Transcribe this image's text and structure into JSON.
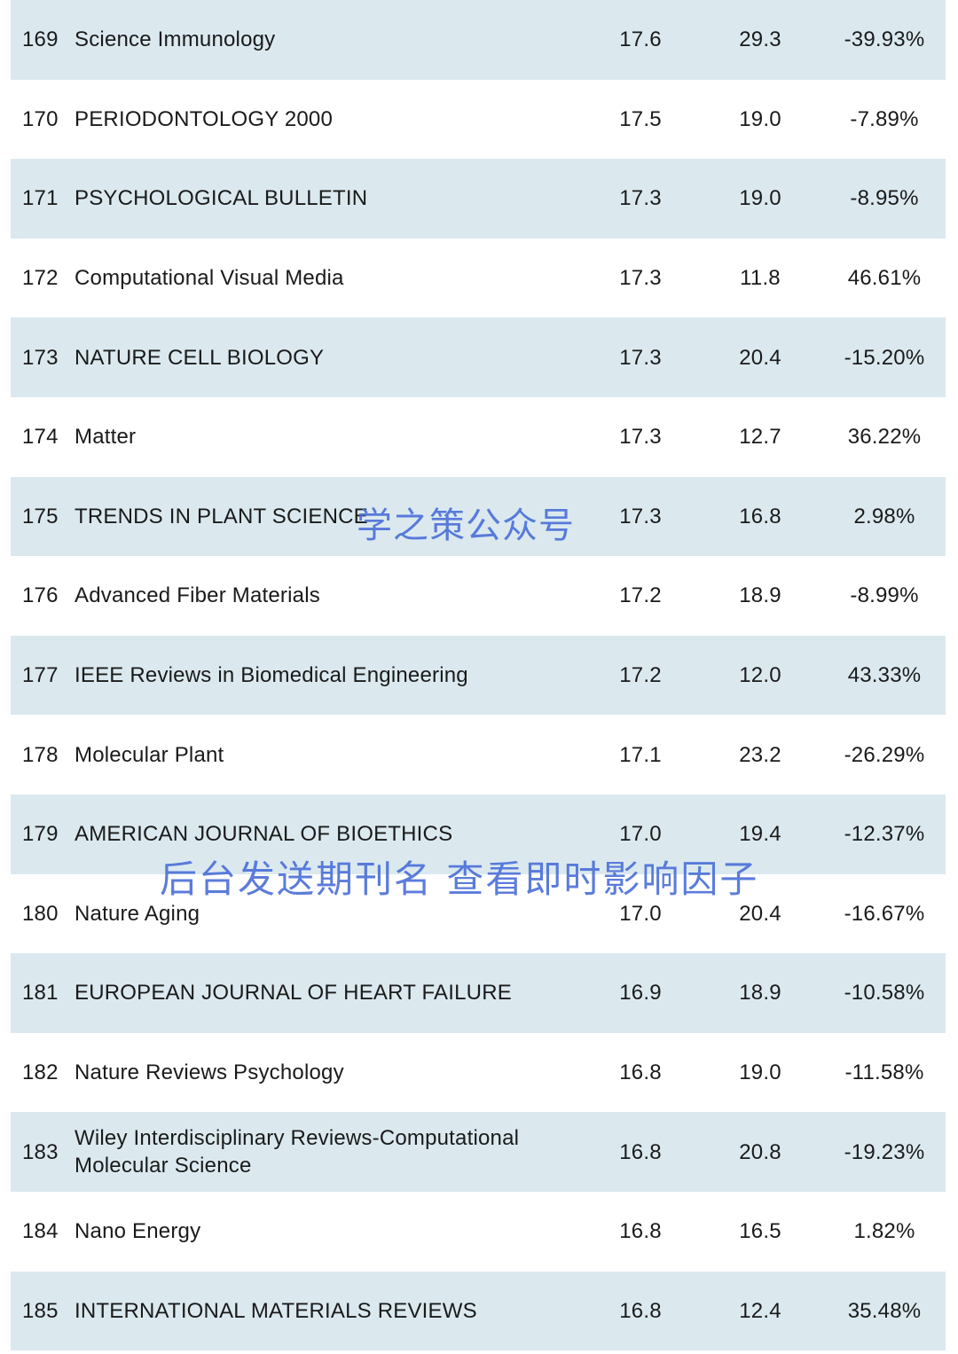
{
  "rows": [
    {
      "rank": "169",
      "name": "Science Immunology",
      "v1": "17.6",
      "v2": "29.3",
      "change": "-39.93%"
    },
    {
      "rank": "170",
      "name": "PERIODONTOLOGY 2000",
      "v1": "17.5",
      "v2": "19.0",
      "change": "-7.89%"
    },
    {
      "rank": "171",
      "name": "PSYCHOLOGICAL BULLETIN",
      "v1": "17.3",
      "v2": "19.0",
      "change": "-8.95%"
    },
    {
      "rank": "172",
      "name": "Computational Visual Media",
      "v1": "17.3",
      "v2": "11.8",
      "change": "46.61%"
    },
    {
      "rank": "173",
      "name": "NATURE CELL BIOLOGY",
      "v1": "17.3",
      "v2": "20.4",
      "change": "-15.20%"
    },
    {
      "rank": "174",
      "name": "Matter",
      "v1": "17.3",
      "v2": "12.7",
      "change": "36.22%"
    },
    {
      "rank": "175",
      "name": "TRENDS IN PLANT SCIENCE",
      "v1": "17.3",
      "v2": "16.8",
      "change": "2.98%"
    },
    {
      "rank": "176",
      "name": "Advanced Fiber Materials",
      "v1": "17.2",
      "v2": "18.9",
      "change": "-8.99%"
    },
    {
      "rank": "177",
      "name": "IEEE Reviews in Biomedical Engineering",
      "v1": "17.2",
      "v2": "12.0",
      "change": "43.33%"
    },
    {
      "rank": "178",
      "name": "Molecular Plant",
      "v1": "17.1",
      "v2": "23.2",
      "change": "-26.29%"
    },
    {
      "rank": "179",
      "name": "AMERICAN JOURNAL OF BIOETHICS",
      "v1": "17.0",
      "v2": "19.4",
      "change": "-12.37%"
    },
    {
      "rank": "180",
      "name": "Nature Aging",
      "v1": "17.0",
      "v2": "20.4",
      "change": "-16.67%"
    },
    {
      "rank": "181",
      "name": "EUROPEAN JOURNAL OF HEART FAILURE",
      "v1": "16.9",
      "v2": "18.9",
      "change": "-10.58%"
    },
    {
      "rank": "182",
      "name": "Nature Reviews Psychology",
      "v1": "16.8",
      "v2": "19.0",
      "change": "-11.58%"
    },
    {
      "rank": "183",
      "name": "Wiley Interdisciplinary Reviews-Computational Molecular Science",
      "v1": "16.8",
      "v2": "20.8",
      "change": "-19.23%"
    },
    {
      "rank": "184",
      "name": "Nano Energy",
      "v1": "16.8",
      "v2": "16.5",
      "change": "1.82%"
    },
    {
      "rank": "185",
      "name": "INTERNATIONAL MATERIALS REVIEWS",
      "v1": "16.8",
      "v2": "12.4",
      "change": "35.48%"
    }
  ],
  "watermarks": {
    "top": "学之策公众号",
    "middle": "后台发送期刊名 查看即时影响因子"
  },
  "colors": {
    "shaded_row": "#dbe9ef",
    "watermark": "#4a6ed8"
  }
}
